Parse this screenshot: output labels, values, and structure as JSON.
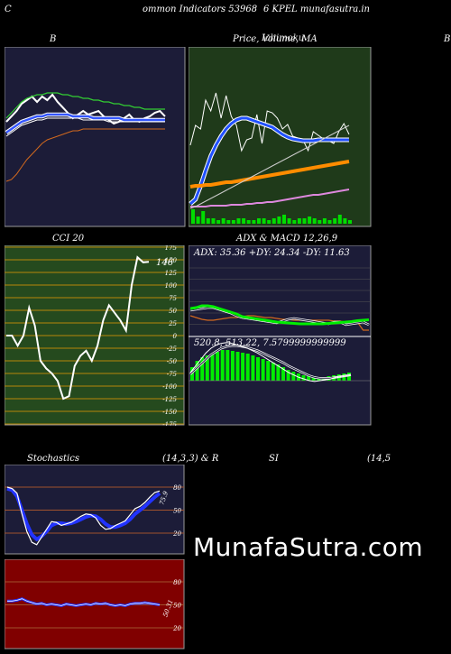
{
  "header": {
    "left": "C",
    "center_a": "ommon  Indicators 53968",
    "center_b": "6  KPEL  munafasutra.in"
  },
  "titles": {
    "bb": "B",
    "price": "Price,  Volume,  MA",
    "price_overlay": "Ichimoku",
    "right_edge": "B",
    "cci": "CCI 20",
    "adx": "ADX  & MACD 12,26,9",
    "stoch": "Stochastics",
    "stoch_params": "(14,3,3) & R",
    "si": "SI",
    "si_params": "(14,5"
  },
  "colors": {
    "navy": "#1c1c38",
    "green_bg": "#1f3a1a",
    "cci_bg": "#254a1e",
    "red_bg": "#800000",
    "orange": "#d2691e",
    "grid": "#a0522d"
  },
  "watermark": "MunafaSutra.com",
  "chart_data": [
    {
      "id": "bollinger",
      "type": "line",
      "title": "B",
      "series": [
        {
          "color": "#ffffff",
          "values": [
            58,
            61,
            64,
            68,
            70,
            72,
            69,
            72,
            70,
            73,
            69,
            66,
            63,
            60,
            62,
            64,
            62,
            63,
            64,
            61,
            59,
            57,
            58,
            60,
            62,
            59,
            58,
            60,
            61,
            63,
            64,
            61
          ]
        },
        {
          "color": "#32cd32",
          "values": [
            60,
            63,
            66,
            69,
            71,
            72,
            73,
            73,
            74,
            74,
            74,
            73,
            73,
            72,
            72,
            71,
            71,
            70,
            70,
            69,
            69,
            68,
            68,
            67,
            67,
            66,
            66,
            65,
            65,
            65,
            65,
            65
          ]
        },
        {
          "color": "#3355ff",
          "values": [
            52,
            54,
            56,
            58,
            59,
            60,
            61,
            61,
            62,
            62,
            62,
            62,
            62,
            61,
            61,
            61,
            61,
            60,
            60,
            60,
            60,
            60,
            60,
            59,
            59,
            59,
            59,
            59,
            59,
            59,
            59,
            59
          ]
        },
        {
          "color": "#ffffff",
          "values": [
            50,
            52,
            54,
            56,
            57,
            58,
            59,
            59,
            60,
            60,
            60,
            60,
            60,
            60,
            60,
            59,
            59,
            59,
            59,
            59,
            58,
            58,
            58,
            58,
            58,
            58,
            58,
            58,
            58,
            58,
            58,
            58
          ]
        },
        {
          "color": "#d2691e",
          "values": [
            25,
            26,
            29,
            33,
            37,
            40,
            43,
            46,
            48,
            49,
            50,
            51,
            52,
            53,
            53,
            54,
            54,
            54,
            54,
            54,
            54,
            54,
            54,
            54,
            54,
            54,
            54,
            54,
            54,
            54,
            54,
            54
          ]
        }
      ]
    },
    {
      "id": "price",
      "type": "line",
      "title": "Price,  Volume,  MA",
      "series": [
        {
          "color": "#ffffff",
          "values": [
            90,
            112,
            108,
            140,
            128,
            148,
            120,
            145,
            122,
            112,
            84,
            96,
            98,
            124,
            92,
            128,
            126,
            120,
            108,
            113,
            100,
            98,
            96,
            84,
            105,
            101,
            97,
            95,
            92,
            105,
            114,
            102
          ]
        },
        {
          "color": "#2050ff",
          "values": [
            25,
            30,
            45,
            62,
            78,
            90,
            100,
            108,
            114,
            118,
            120,
            120,
            118,
            116,
            114,
            112,
            110,
            106,
            102,
            99,
            97,
            96,
            95,
            95,
            95,
            96,
            96,
            96,
            96,
            96,
            96,
            96
          ]
        },
        {
          "color": "#ff8c00",
          "values": [
            44,
            45,
            45,
            46,
            46,
            47,
            48,
            49,
            49,
            50,
            51,
            52,
            53,
            54,
            55,
            56,
            57,
            58,
            59,
            60,
            61,
            62,
            63,
            64,
            65,
            66,
            67,
            68,
            69,
            70,
            71,
            72
          ]
        },
        {
          "color": "#dd88dd",
          "values": [
            22,
            22,
            22,
            22,
            23,
            23,
            23,
            23,
            24,
            24,
            24,
            25,
            25,
            26,
            26,
            27,
            27,
            28,
            29,
            30,
            31,
            32,
            33,
            34,
            35,
            35,
            36,
            37,
            38,
            39,
            40,
            41
          ]
        },
        {
          "color": "#cccccc",
          "values": [
            20,
            22,
            25,
            28,
            31,
            34,
            37,
            40,
            43,
            46,
            49,
            52,
            55,
            58,
            61,
            64,
            67,
            70,
            73,
            76,
            79,
            82,
            85,
            88,
            91,
            94,
            97,
            100,
            103,
            106,
            109,
            112
          ]
        }
      ],
      "volume": [
        8,
        4,
        7,
        3,
        3,
        2,
        3,
        2,
        2,
        3,
        3,
        2,
        2,
        3,
        3,
        2,
        3,
        4,
        5,
        3,
        2,
        3,
        3,
        4,
        3,
        2,
        3,
        2,
        3,
        5,
        3,
        2
      ]
    },
    {
      "id": "cci",
      "type": "line",
      "title": "CCI 20",
      "ylim": [
        -175,
        175
      ],
      "ticks": [
        175,
        150,
        125,
        100,
        75,
        50,
        25,
        0,
        -25,
        -50,
        -75,
        -100,
        -125,
        -150,
        -175
      ],
      "values": [
        0,
        0,
        -20,
        0,
        55,
        20,
        -50,
        -65,
        -75,
        -90,
        -125,
        -120,
        -60,
        -40,
        -30,
        -50,
        -20,
        30,
        60,
        45,
        30,
        10,
        100,
        155,
        145,
        146
      ],
      "last_label": "146"
    },
    {
      "id": "adx",
      "type": "line",
      "title": "ADX  & MACD 12,26,9",
      "readout": "ADX: 35.36   +DY: 24.34   -DY: 11.63",
      "ticks": [
        150,
        125,
        100,
        75,
        50,
        25
      ],
      "adx": [
        60,
        62,
        66,
        66,
        64,
        60,
        56,
        52,
        48,
        42,
        40,
        38,
        36,
        34,
        32,
        30,
        29,
        28,
        27,
        26,
        26,
        26,
        26,
        26,
        27,
        28,
        29,
        30,
        31,
        33,
        34,
        35
      ],
      "plus_di": [
        56,
        58,
        60,
        62,
        62,
        58,
        54,
        50,
        44,
        40,
        38,
        36,
        34,
        32,
        30,
        28,
        32,
        36,
        38,
        36,
        34,
        32,
        30,
        28,
        26,
        30,
        30,
        24,
        26,
        28,
        30,
        24
      ],
      "minus_di": [
        44,
        40,
        36,
        34,
        34,
        36,
        38,
        40,
        40,
        42,
        44,
        44,
        42,
        40,
        40,
        38,
        36,
        36,
        34,
        34,
        34,
        34,
        34,
        34,
        34,
        32,
        32,
        30,
        30,
        30,
        12,
        12
      ]
    },
    {
      "id": "macd",
      "type": "bar",
      "readout": "520.8,   513.22,   7.5799999999999",
      "hist": [
        15,
        22,
        26,
        28,
        30,
        32,
        34,
        34,
        33,
        32,
        31,
        30,
        28,
        26,
        24,
        22,
        20,
        18,
        15,
        12,
        10,
        8,
        6,
        5,
        4,
        4,
        4,
        5,
        6,
        7,
        8,
        9
      ],
      "macd": [
        10,
        18,
        26,
        34,
        40,
        44,
        46,
        47,
        46,
        44,
        42,
        40,
        37,
        34,
        30,
        26,
        22,
        18,
        14,
        10,
        7,
        4,
        2,
        0,
        -1,
        0,
        1,
        2,
        4,
        5,
        6,
        7
      ],
      "signal": [
        8,
        14,
        20,
        26,
        32,
        36,
        40,
        42,
        43,
        43,
        42,
        41,
        39,
        37,
        34,
        31,
        28,
        25,
        22,
        18,
        15,
        12,
        9,
        6,
        4,
        3,
        3,
        3,
        4,
        5,
        6,
        7
      ]
    },
    {
      "id": "stochastics",
      "type": "line",
      "title": "Stochastics",
      "ticks": [
        80,
        50,
        20
      ],
      "k": [
        80,
        78,
        72,
        45,
        22,
        8,
        5,
        15,
        25,
        35,
        34,
        30,
        32,
        34,
        38,
        42,
        45,
        44,
        40,
        30,
        25,
        26,
        30,
        33,
        36,
        44,
        52,
        55,
        60,
        67,
        73,
        75
      ],
      "d": [
        78,
        76,
        68,
        50,
        32,
        18,
        12,
        16,
        22,
        30,
        33,
        33,
        32,
        33,
        35,
        38,
        41,
        43,
        42,
        38,
        32,
        28,
        28,
        30,
        33,
        38,
        45,
        50,
        55,
        61,
        67,
        72
      ],
      "last_label": "75.9"
    },
    {
      "id": "rsi",
      "type": "line",
      "title": "SI",
      "ticks": [
        80,
        50,
        20
      ],
      "values": [
        55,
        55,
        56,
        58,
        55,
        53,
        51,
        52,
        50,
        51,
        50,
        49,
        51,
        50,
        49,
        50,
        51,
        50,
        52,
        51,
        52,
        50,
        49,
        50,
        49,
        51,
        52,
        52,
        53,
        52,
        51,
        50
      ],
      "last_label": "50.31"
    }
  ]
}
